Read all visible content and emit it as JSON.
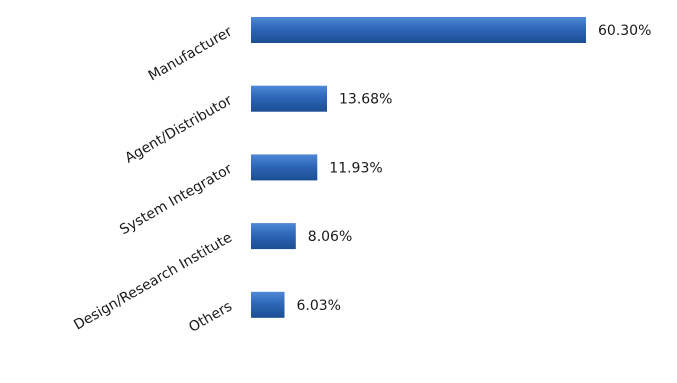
{
  "chart_data": {
    "type": "bar",
    "orientation": "horizontal",
    "categories": [
      "Manufacturer",
      "Agent/Distributor",
      "System Integrator",
      "Design/Research Institute",
      "Others"
    ],
    "values": [
      60.3,
      13.68,
      11.93,
      8.06,
      6.03
    ],
    "value_labels": [
      "60.30%",
      "13.68%",
      "11.93%",
      "8.06%",
      "6.03%"
    ],
    "unit": "%",
    "xlim": [
      0,
      60.3
    ],
    "grid": false,
    "legend": "none",
    "bar_color": "#2e67b8",
    "bar_highlight": "#4f88d6",
    "bar_shadow": "#1b4d92",
    "title": "",
    "xlabel": "",
    "ylabel": ""
  }
}
